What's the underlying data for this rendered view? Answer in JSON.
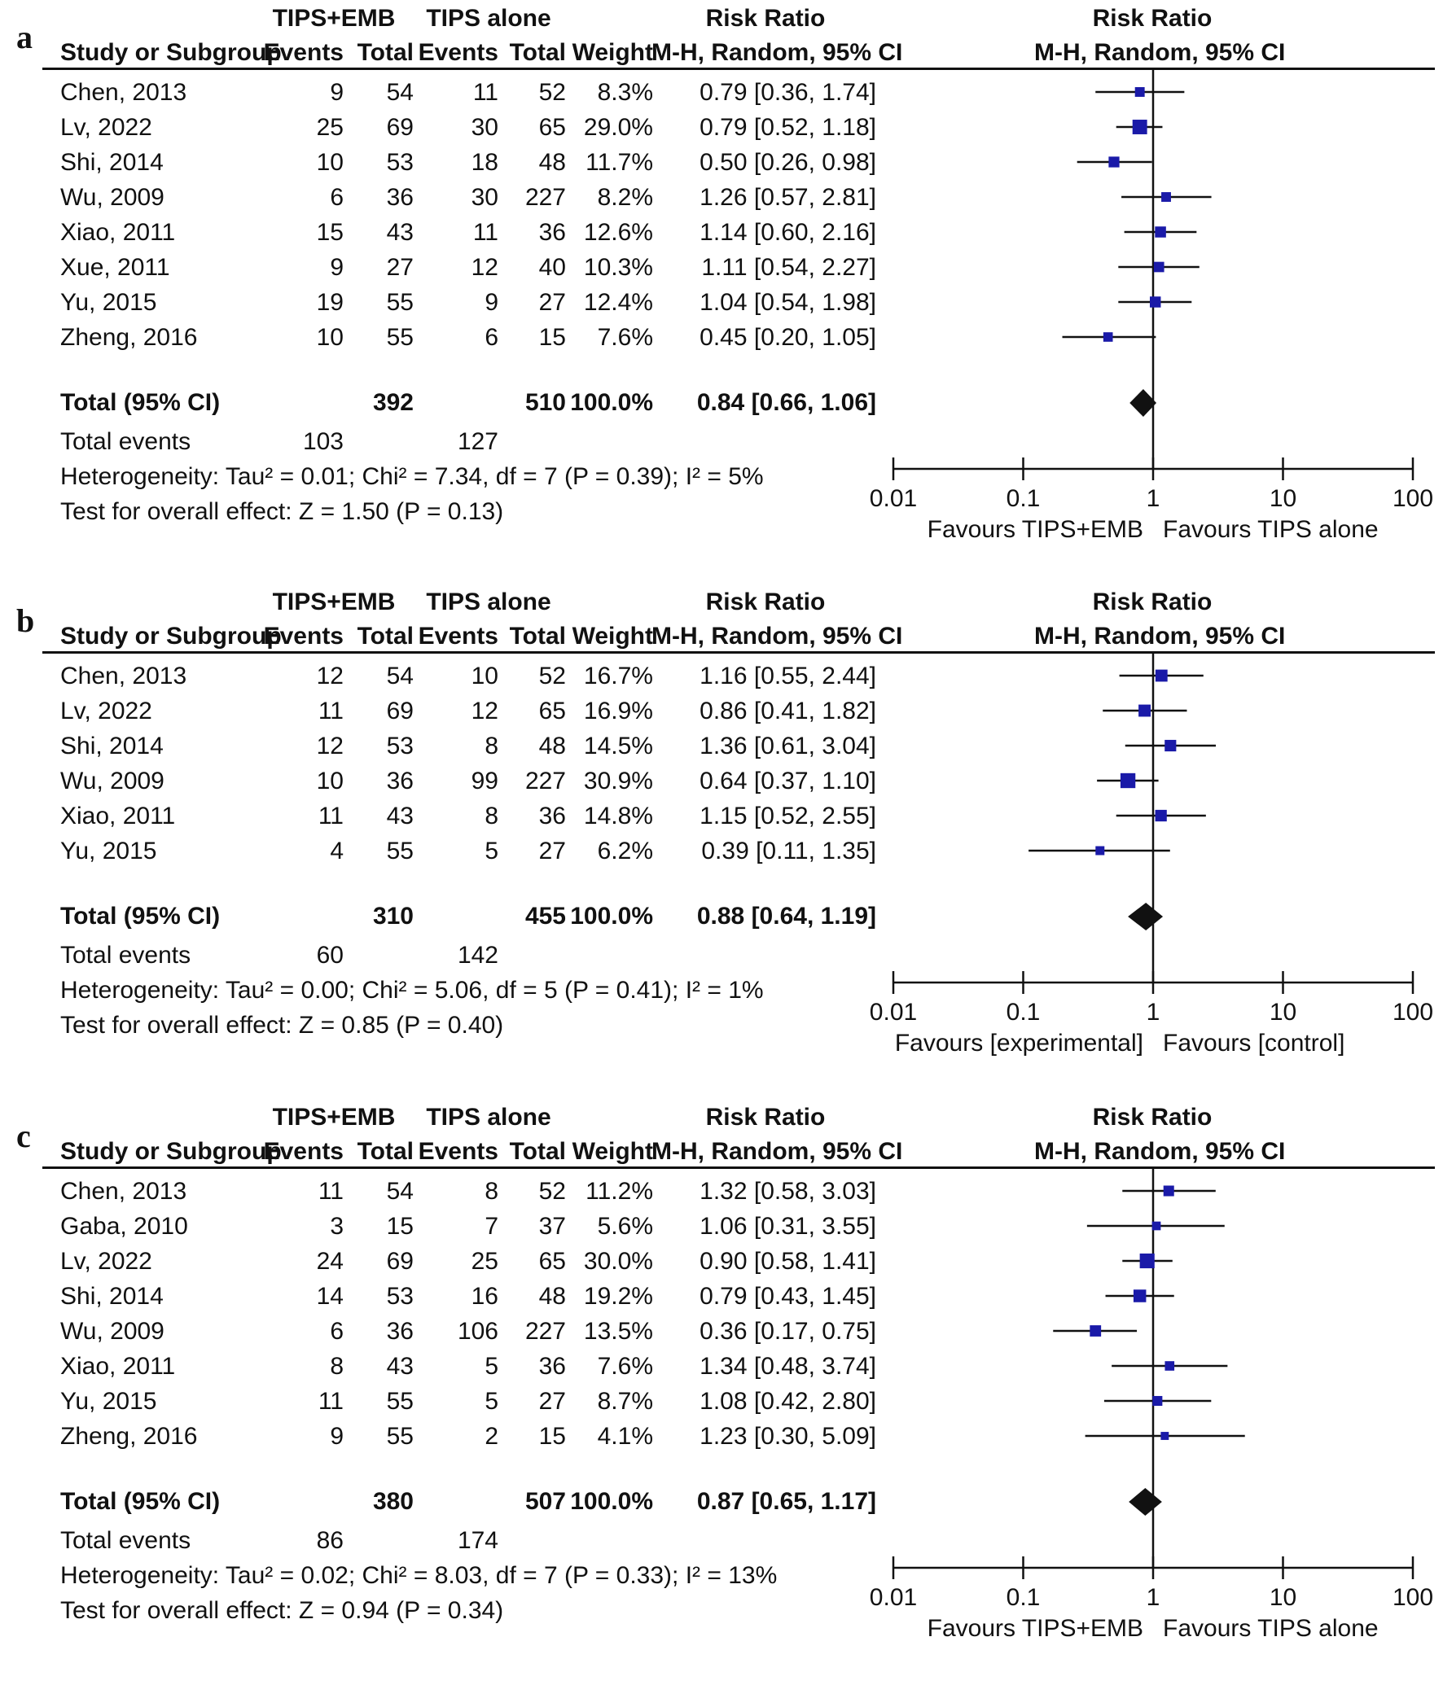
{
  "panels": [
    {
      "label": "a",
      "headers": {
        "group1": "TIPS+EMB",
        "group2": "TIPS alone",
        "study": "Study or Subgroup",
        "events": "Events",
        "total": "Total",
        "weight": "Weight",
        "rr": "Risk Ratio",
        "method": "M-H, Random, 95% CI",
        "rr_plot": "Risk Ratio",
        "method_plot": "M-H, Random, 95% CI"
      },
      "rows": [
        {
          "study": "Chen, 2013",
          "e1": "9",
          "n1": "54",
          "e2": "11",
          "n2": "52",
          "weight": "8.3%",
          "ci": "0.79 [0.36, 1.74]"
        },
        {
          "study": "Lv, 2022",
          "e1": "25",
          "n1": "69",
          "e2": "30",
          "n2": "65",
          "weight": "29.0%",
          "ci": "0.79 [0.52, 1.18]"
        },
        {
          "study": "Shi, 2014",
          "e1": "10",
          "n1": "53",
          "e2": "18",
          "n2": "48",
          "weight": "11.7%",
          "ci": "0.50 [0.26, 0.98]"
        },
        {
          "study": "Wu, 2009",
          "e1": "6",
          "n1": "36",
          "e2": "30",
          "n2": "227",
          "weight": "8.2%",
          "ci": "1.26 [0.57, 2.81]"
        },
        {
          "study": "Xiao, 2011",
          "e1": "15",
          "n1": "43",
          "e2": "11",
          "n2": "36",
          "weight": "12.6%",
          "ci": "1.14 [0.60, 2.16]"
        },
        {
          "study": "Xue, 2011",
          "e1": "9",
          "n1": "27",
          "e2": "12",
          "n2": "40",
          "weight": "10.3%",
          "ci": "1.11 [0.54, 2.27]"
        },
        {
          "study": "Yu, 2015",
          "e1": "19",
          "n1": "55",
          "e2": "9",
          "n2": "27",
          "weight": "12.4%",
          "ci": "1.04 [0.54, 1.98]"
        },
        {
          "study": "Zheng, 2016",
          "e1": "10",
          "n1": "55",
          "e2": "6",
          "n2": "15",
          "weight": "7.6%",
          "ci": "0.45 [0.20, 1.05]"
        }
      ],
      "total": {
        "label": "Total (95% CI)",
        "n1": "392",
        "n2": "510",
        "weight": "100.0%",
        "ci": "0.84 [0.66, 1.06]"
      },
      "events": {
        "label": "Total events",
        "e1": "103",
        "e2": "127"
      },
      "heterogeneity": "Heterogeneity: Tau² = 0.01; Chi² = 7.34, df = 7 (P = 0.39); I² = 5%",
      "overall": "Test for overall effect: Z = 1.50 (P = 0.13)",
      "favours_left": "Favours TIPS+EMB",
      "favours_right": "Favours TIPS alone"
    },
    {
      "label": "b",
      "headers": {
        "group1": "TIPS+EMB",
        "group2": "TIPS alone",
        "study": "Study or Subgroup",
        "events": "Events",
        "total": "Total",
        "weight": "Weight",
        "rr": "Risk Ratio",
        "method": "M-H, Random, 95% CI",
        "rr_plot": "Risk Ratio",
        "method_plot": "M-H, Random, 95% CI"
      },
      "rows": [
        {
          "study": "Chen, 2013",
          "e1": "12",
          "n1": "54",
          "e2": "10",
          "n2": "52",
          "weight": "16.7%",
          "ci": "1.16 [0.55, 2.44]"
        },
        {
          "study": "Lv, 2022",
          "e1": "11",
          "n1": "69",
          "e2": "12",
          "n2": "65",
          "weight": "16.9%",
          "ci": "0.86 [0.41, 1.82]"
        },
        {
          "study": "Shi, 2014",
          "e1": "12",
          "n1": "53",
          "e2": "8",
          "n2": "48",
          "weight": "14.5%",
          "ci": "1.36 [0.61, 3.04]"
        },
        {
          "study": "Wu, 2009",
          "e1": "10",
          "n1": "36",
          "e2": "99",
          "n2": "227",
          "weight": "30.9%",
          "ci": "0.64 [0.37, 1.10]"
        },
        {
          "study": "Xiao, 2011",
          "e1": "11",
          "n1": "43",
          "e2": "8",
          "n2": "36",
          "weight": "14.8%",
          "ci": "1.15 [0.52, 2.55]"
        },
        {
          "study": "Yu, 2015",
          "e1": "4",
          "n1": "55",
          "e2": "5",
          "n2": "27",
          "weight": "6.2%",
          "ci": "0.39 [0.11, 1.35]"
        }
      ],
      "total": {
        "label": "Total (95% CI)",
        "n1": "310",
        "n2": "455",
        "weight": "100.0%",
        "ci": "0.88 [0.64, 1.19]"
      },
      "events": {
        "label": "Total events",
        "e1": "60",
        "e2": "142"
      },
      "heterogeneity": "Heterogeneity: Tau² = 0.00; Chi² = 5.06, df = 5 (P = 0.41); I² = 1%",
      "overall": "Test for overall effect: Z = 0.85 (P = 0.40)",
      "favours_left": "Favours [experimental]",
      "favours_right": "Favours [control]"
    },
    {
      "label": "c",
      "headers": {
        "group1": "TIPS+EMB",
        "group2": "TIPS alone",
        "study": "Study or Subgroup",
        "events": "Events",
        "total": "Total",
        "weight": "Weight",
        "rr": "Risk Ratio",
        "method": "M-H, Random, 95% CI",
        "rr_plot": "Risk Ratio",
        "method_plot": "M-H, Random, 95% CI"
      },
      "rows": [
        {
          "study": "Chen, 2013",
          "e1": "11",
          "n1": "54",
          "e2": "8",
          "n2": "52",
          "weight": "11.2%",
          "ci": "1.32 [0.58, 3.03]"
        },
        {
          "study": "Gaba, 2010",
          "e1": "3",
          "n1": "15",
          "e2": "7",
          "n2": "37",
          "weight": "5.6%",
          "ci": "1.06 [0.31, 3.55]"
        },
        {
          "study": "Lv, 2022",
          "e1": "24",
          "n1": "69",
          "e2": "25",
          "n2": "65",
          "weight": "30.0%",
          "ci": "0.90 [0.58, 1.41]"
        },
        {
          "study": "Shi, 2014",
          "e1": "14",
          "n1": "53",
          "e2": "16",
          "n2": "48",
          "weight": "19.2%",
          "ci": "0.79 [0.43, 1.45]"
        },
        {
          "study": "Wu, 2009",
          "e1": "6",
          "n1": "36",
          "e2": "106",
          "n2": "227",
          "weight": "13.5%",
          "ci": "0.36 [0.17, 0.75]"
        },
        {
          "study": "Xiao, 2011",
          "e1": "8",
          "n1": "43",
          "e2": "5",
          "n2": "36",
          "weight": "7.6%",
          "ci": "1.34 [0.48, 3.74]"
        },
        {
          "study": "Yu, 2015",
          "e1": "11",
          "n1": "55",
          "e2": "5",
          "n2": "27",
          "weight": "8.7%",
          "ci": "1.08 [0.42, 2.80]"
        },
        {
          "study": "Zheng, 2016",
          "e1": "9",
          "n1": "55",
          "e2": "2",
          "n2": "15",
          "weight": "4.1%",
          "ci": "1.23 [0.30, 5.09]"
        }
      ],
      "total": {
        "label": "Total (95% CI)",
        "n1": "380",
        "n2": "507",
        "weight": "100.0%",
        "ci": "0.87 [0.65, 1.17]"
      },
      "events": {
        "label": "Total events",
        "e1": "86",
        "e2": "174"
      },
      "heterogeneity": "Heterogeneity: Tau² = 0.02; Chi² = 8.03, df = 7 (P = 0.33); I² = 13%",
      "overall": "Test for overall effect: Z = 0.94 (P = 0.34)",
      "favours_left": "Favours TIPS+EMB",
      "favours_right": "Favours TIPS alone"
    }
  ],
  "chart_data": [
    {
      "type": "forest",
      "scale": "log",
      "xlim": [
        0.01,
        100
      ],
      "ticks": [
        "0.01",
        "0.1",
        "1",
        "10",
        "100"
      ],
      "series": [
        {
          "name": "Chen, 2013",
          "rr": 0.79,
          "lo": 0.36,
          "hi": 1.74,
          "weight": 8.3
        },
        {
          "name": "Lv, 2022",
          "rr": 0.79,
          "lo": 0.52,
          "hi": 1.18,
          "weight": 29.0
        },
        {
          "name": "Shi, 2014",
          "rr": 0.5,
          "lo": 0.26,
          "hi": 0.98,
          "weight": 11.7
        },
        {
          "name": "Wu, 2009",
          "rr": 1.26,
          "lo": 0.57,
          "hi": 2.81,
          "weight": 8.2
        },
        {
          "name": "Xiao, 2011",
          "rr": 1.14,
          "lo": 0.6,
          "hi": 2.16,
          "weight": 12.6
        },
        {
          "name": "Xue, 2011",
          "rr": 1.11,
          "lo": 0.54,
          "hi": 2.27,
          "weight": 10.3
        },
        {
          "name": "Yu, 2015",
          "rr": 1.04,
          "lo": 0.54,
          "hi": 1.98,
          "weight": 12.4
        },
        {
          "name": "Zheng, 2016",
          "rr": 0.45,
          "lo": 0.2,
          "hi": 1.05,
          "weight": 7.6
        }
      ],
      "overall": {
        "rr": 0.84,
        "lo": 0.66,
        "hi": 1.06
      }
    },
    {
      "type": "forest",
      "scale": "log",
      "xlim": [
        0.01,
        100
      ],
      "ticks": [
        "0.01",
        "0.1",
        "1",
        "10",
        "100"
      ],
      "series": [
        {
          "name": "Chen, 2013",
          "rr": 1.16,
          "lo": 0.55,
          "hi": 2.44,
          "weight": 16.7
        },
        {
          "name": "Lv, 2022",
          "rr": 0.86,
          "lo": 0.41,
          "hi": 1.82,
          "weight": 16.9
        },
        {
          "name": "Shi, 2014",
          "rr": 1.36,
          "lo": 0.61,
          "hi": 3.04,
          "weight": 14.5
        },
        {
          "name": "Wu, 2009",
          "rr": 0.64,
          "lo": 0.37,
          "hi": 1.1,
          "weight": 30.9
        },
        {
          "name": "Xiao, 2011",
          "rr": 1.15,
          "lo": 0.52,
          "hi": 2.55,
          "weight": 14.8
        },
        {
          "name": "Yu, 2015",
          "rr": 0.39,
          "lo": 0.11,
          "hi": 1.35,
          "weight": 6.2
        }
      ],
      "overall": {
        "rr": 0.88,
        "lo": 0.64,
        "hi": 1.19
      }
    },
    {
      "type": "forest",
      "scale": "log",
      "xlim": [
        0.01,
        100
      ],
      "ticks": [
        "0.01",
        "0.1",
        "1",
        "10",
        "100"
      ],
      "series": [
        {
          "name": "Chen, 2013",
          "rr": 1.32,
          "lo": 0.58,
          "hi": 3.03,
          "weight": 11.2
        },
        {
          "name": "Gaba, 2010",
          "rr": 1.06,
          "lo": 0.31,
          "hi": 3.55,
          "weight": 5.6
        },
        {
          "name": "Lv, 2022",
          "rr": 0.9,
          "lo": 0.58,
          "hi": 1.41,
          "weight": 30.0
        },
        {
          "name": "Shi, 2014",
          "rr": 0.79,
          "lo": 0.43,
          "hi": 1.45,
          "weight": 19.2
        },
        {
          "name": "Wu, 2009",
          "rr": 0.36,
          "lo": 0.17,
          "hi": 0.75,
          "weight": 13.5
        },
        {
          "name": "Xiao, 2011",
          "rr": 1.34,
          "lo": 0.48,
          "hi": 3.74,
          "weight": 7.6
        },
        {
          "name": "Yu, 2015",
          "rr": 1.08,
          "lo": 0.42,
          "hi": 2.8,
          "weight": 8.7
        },
        {
          "name": "Zheng, 2016",
          "rr": 1.23,
          "lo": 0.3,
          "hi": 5.09,
          "weight": 4.1
        }
      ],
      "overall": {
        "rr": 0.87,
        "lo": 0.65,
        "hi": 1.17
      }
    }
  ],
  "colors": {
    "marker": "#1a1aa8",
    "ink": "#111111"
  }
}
